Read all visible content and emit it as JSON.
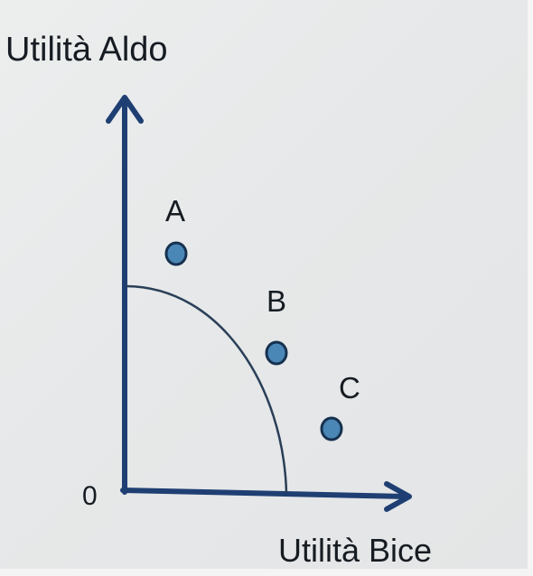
{
  "axes": {
    "y_title": "Utilità Aldo",
    "x_title": "Utilità Bice",
    "origin": "0"
  },
  "points": [
    {
      "label": "A"
    },
    {
      "label": "B"
    },
    {
      "label": "C"
    }
  ],
  "colors": {
    "axis": "#1f3f73",
    "curve": "#2a3f58",
    "point_fill": "#4a86b6",
    "point_stroke": "#16314f",
    "text": "#161c22",
    "background": "#e8eaeb"
  }
}
